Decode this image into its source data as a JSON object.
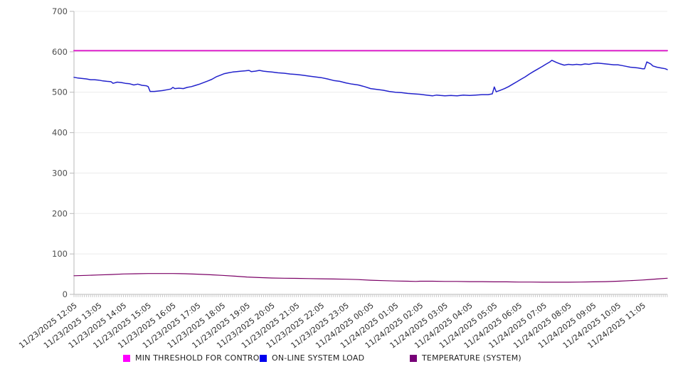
{
  "chart_data": {
    "type": "line",
    "title": "",
    "xlabel": "",
    "ylabel": "",
    "grid": true,
    "legend_position": "bottom",
    "y_axis": {
      "min": 0,
      "max": 700,
      "step": 100,
      "ticks": [
        0,
        100,
        200,
        300,
        400,
        500,
        600,
        700
      ]
    },
    "x_axis": {
      "minor_ticks_per_hour": 12,
      "categories": [
        "11/23/2025 12:05",
        "11/23/2025 13:05",
        "11/23/2025 14:05",
        "11/23/2025 15:05",
        "11/23/2025 16:05",
        "11/23/2025 17:05",
        "11/23/2025 18:05",
        "11/23/2025 19:05",
        "11/23/2025 20:05",
        "11/23/2025 21:05",
        "11/23/2025 22:05",
        "11/23/2025 23:05",
        "11/24/2025 00:05",
        "11/24/2025 01:05",
        "11/24/2025 02:05",
        "11/24/2025 03:05",
        "11/24/2025 04:05",
        "11/24/2025 05:05",
        "11/24/2025 06:05",
        "11/24/2025 07:05",
        "11/24/2025 08:05",
        "11/24/2025 09:05",
        "11/24/2025 10:05",
        "11/24/2025 11:05"
      ]
    },
    "series": [
      {
        "name": "MIN THRESHOLD FOR CONTROL",
        "color": "#dd22cc",
        "legend_color": "#ff00ff",
        "width": 2,
        "points": [
          [
            0,
            603
          ],
          [
            24,
            603
          ]
        ]
      },
      {
        "name": "ON-LINE SYSTEM LOAD",
        "color": "#2222cc",
        "legend_color": "#0000ee",
        "width": 1.5,
        "points": [
          [
            0,
            537
          ],
          [
            0.17,
            535
          ],
          [
            0.33,
            534
          ],
          [
            0.5,
            533
          ],
          [
            0.67,
            531
          ],
          [
            0.83,
            531
          ],
          [
            1,
            530
          ],
          [
            1.17,
            528
          ],
          [
            1.33,
            527
          ],
          [
            1.5,
            526
          ],
          [
            1.58,
            522
          ],
          [
            1.75,
            525
          ],
          [
            1.92,
            524
          ],
          [
            2.08,
            522
          ],
          [
            2.25,
            521
          ],
          [
            2.42,
            518
          ],
          [
            2.58,
            520
          ],
          [
            2.75,
            517
          ],
          [
            2.92,
            516
          ],
          [
            3,
            514
          ],
          [
            3.08,
            502
          ],
          [
            3.25,
            502
          ],
          [
            3.42,
            503
          ],
          [
            3.58,
            504
          ],
          [
            3.75,
            506
          ],
          [
            3.92,
            508
          ],
          [
            4,
            512
          ],
          [
            4.08,
            509
          ],
          [
            4.25,
            510
          ],
          [
            4.42,
            509
          ],
          [
            4.58,
            512
          ],
          [
            4.75,
            514
          ],
          [
            4.92,
            517
          ],
          [
            5.08,
            520
          ],
          [
            5.25,
            524
          ],
          [
            5.42,
            528
          ],
          [
            5.58,
            532
          ],
          [
            5.75,
            538
          ],
          [
            5.92,
            542
          ],
          [
            6.08,
            546
          ],
          [
            6.25,
            548
          ],
          [
            6.42,
            550
          ],
          [
            6.58,
            551
          ],
          [
            6.75,
            552
          ],
          [
            6.92,
            553
          ],
          [
            7.08,
            554
          ],
          [
            7.17,
            551
          ],
          [
            7.33,
            552
          ],
          [
            7.5,
            554
          ],
          [
            7.67,
            552
          ],
          [
            7.83,
            551
          ],
          [
            8,
            550
          ],
          [
            8.25,
            548
          ],
          [
            8.5,
            547
          ],
          [
            8.75,
            545
          ],
          [
            9,
            544
          ],
          [
            9.25,
            542
          ],
          [
            9.5,
            540
          ],
          [
            9.75,
            538
          ],
          [
            10,
            536
          ],
          [
            10.25,
            533
          ],
          [
            10.5,
            529
          ],
          [
            10.75,
            527
          ],
          [
            11,
            523
          ],
          [
            11.25,
            520
          ],
          [
            11.5,
            518
          ],
          [
            11.75,
            514
          ],
          [
            12,
            509
          ],
          [
            12.25,
            507
          ],
          [
            12.5,
            505
          ],
          [
            12.75,
            502
          ],
          [
            13,
            500
          ],
          [
            13.25,
            499
          ],
          [
            13.5,
            497
          ],
          [
            13.75,
            496
          ],
          [
            14,
            495
          ],
          [
            14.25,
            493
          ],
          [
            14.5,
            491
          ],
          [
            14.67,
            493
          ],
          [
            14.83,
            492
          ],
          [
            15,
            491
          ],
          [
            15.25,
            492
          ],
          [
            15.5,
            491
          ],
          [
            15.75,
            493
          ],
          [
            16,
            492
          ],
          [
            16.25,
            493
          ],
          [
            16.5,
            494
          ],
          [
            16.75,
            494
          ],
          [
            16.92,
            496
          ],
          [
            17,
            513
          ],
          [
            17.08,
            501
          ],
          [
            17.25,
            505
          ],
          [
            17.42,
            509
          ],
          [
            17.58,
            514
          ],
          [
            17.75,
            520
          ],
          [
            17.92,
            526
          ],
          [
            18.08,
            532
          ],
          [
            18.25,
            538
          ],
          [
            18.42,
            545
          ],
          [
            18.58,
            551
          ],
          [
            18.75,
            557
          ],
          [
            18.92,
            563
          ],
          [
            19.08,
            569
          ],
          [
            19.25,
            575
          ],
          [
            19.33,
            579
          ],
          [
            19.5,
            574
          ],
          [
            19.67,
            570
          ],
          [
            19.83,
            567
          ],
          [
            20,
            569
          ],
          [
            20.17,
            568
          ],
          [
            20.33,
            569
          ],
          [
            20.5,
            568
          ],
          [
            20.67,
            570
          ],
          [
            20.83,
            569
          ],
          [
            21,
            571
          ],
          [
            21.17,
            572
          ],
          [
            21.33,
            571
          ],
          [
            21.5,
            570
          ],
          [
            21.67,
            569
          ],
          [
            21.83,
            568
          ],
          [
            22,
            568
          ],
          [
            22.17,
            566
          ],
          [
            22.33,
            564
          ],
          [
            22.5,
            562
          ],
          [
            22.67,
            561
          ],
          [
            22.83,
            560
          ],
          [
            23,
            558
          ],
          [
            23.08,
            558
          ],
          [
            23.17,
            575
          ],
          [
            23.33,
            570
          ],
          [
            23.42,
            565
          ],
          [
            23.58,
            562
          ],
          [
            23.75,
            560
          ],
          [
            23.92,
            558
          ],
          [
            24,
            556
          ]
        ]
      },
      {
        "name": "TEMPERATURE (SYSTEM)",
        "color": "#7b0066",
        "legend_color": "#770077",
        "width": 1.2,
        "points": [
          [
            0,
            46
          ],
          [
            0.5,
            47
          ],
          [
            1,
            48
          ],
          [
            1.5,
            49
          ],
          [
            2,
            50.5
          ],
          [
            2.5,
            51
          ],
          [
            3,
            51.5
          ],
          [
            3.5,
            51.5
          ],
          [
            4,
            51.5
          ],
          [
            4.5,
            51
          ],
          [
            5,
            50
          ],
          [
            5.5,
            48.5
          ],
          [
            6,
            47
          ],
          [
            6.5,
            45
          ],
          [
            7,
            43
          ],
          [
            7.5,
            41.5
          ],
          [
            8,
            40.5
          ],
          [
            8.5,
            40
          ],
          [
            9,
            39.5
          ],
          [
            9.5,
            39
          ],
          [
            10,
            38.5
          ],
          [
            10.5,
            38
          ],
          [
            11,
            37.5
          ],
          [
            11.5,
            36.5
          ],
          [
            12,
            35
          ],
          [
            12.5,
            34
          ],
          [
            13,
            33
          ],
          [
            13.5,
            32.5
          ],
          [
            13.83,
            32
          ],
          [
            14,
            32.5
          ],
          [
            14.5,
            32.5
          ],
          [
            15,
            32
          ],
          [
            15.5,
            32
          ],
          [
            16,
            31.5
          ],
          [
            16.5,
            31.5
          ],
          [
            17,
            31
          ],
          [
            17.5,
            31
          ],
          [
            18,
            30.5
          ],
          [
            18.5,
            30.5
          ],
          [
            19,
            30
          ],
          [
            19.5,
            30
          ],
          [
            20,
            30
          ],
          [
            20.5,
            30.5
          ],
          [
            21,
            31
          ],
          [
            21.5,
            31.5
          ],
          [
            22,
            32.5
          ],
          [
            22.5,
            34
          ],
          [
            23,
            35.5
          ],
          [
            23.33,
            37
          ],
          [
            23.67,
            38.5
          ],
          [
            24,
            40
          ]
        ]
      }
    ],
    "colors": {
      "gridline": "#ececec",
      "axis": "#b9b9b9",
      "minor_tick": "#cccccc",
      "y_label_text": "#4d4d4d",
      "x_label_text": "#2b2b2b"
    }
  }
}
